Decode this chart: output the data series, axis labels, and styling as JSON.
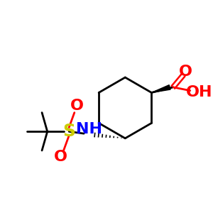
{
  "bg_color": "#ffffff",
  "atom_colors": {
    "C": "#000000",
    "O": "#ff0000",
    "N": "#0000ff",
    "S": "#cccc00",
    "H": "#000000"
  },
  "figsize": [
    3.0,
    3.0
  ],
  "dpi": 100
}
